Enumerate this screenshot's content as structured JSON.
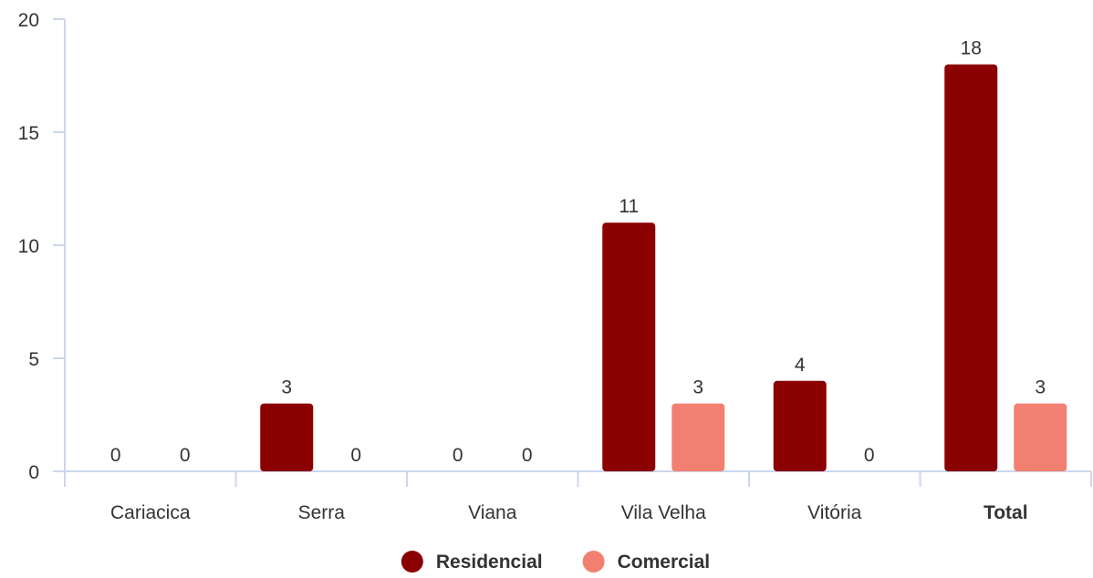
{
  "chart_data": {
    "type": "bar",
    "categories": [
      "Cariacica",
      "Serra",
      "Viana",
      "Vila Velha",
      "Vitória",
      "Total"
    ],
    "series": [
      {
        "name": "Residencial",
        "values": [
          0,
          3,
          0,
          11,
          4,
          18
        ],
        "color": "#8b0000"
      },
      {
        "name": "Comercial",
        "values": [
          0,
          0,
          0,
          3,
          0,
          3
        ],
        "color": "#f28070"
      }
    ],
    "ylim": [
      0,
      20
    ],
    "yticks": [
      0,
      5,
      10,
      15,
      20
    ],
    "title": "",
    "xlabel": "",
    "ylabel": "",
    "grid": false,
    "legend_position": "bottom-center",
    "bold_categories": [
      "Total"
    ],
    "axis_color": "#ccd6eb",
    "label_color": "#333333"
  }
}
